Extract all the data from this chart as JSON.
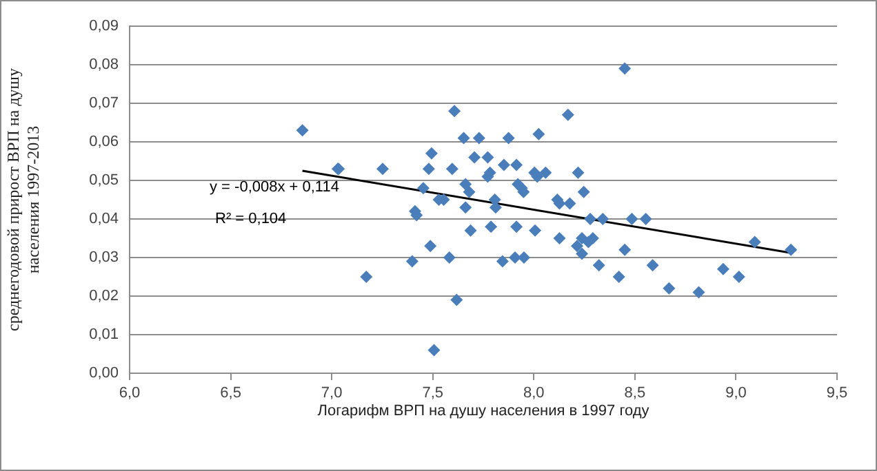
{
  "chart_data": {
    "type": "scatter",
    "xlabel": "Логарифм ВРП на душу населения в 1997 году",
    "ylabel": "среднегодовой прирост ВРП на душу\nнаселения 1997-2013",
    "xlim": [
      6.0,
      9.5
    ],
    "xticks": [
      {
        "value": 6.0,
        "label": "6,0"
      },
      {
        "value": 6.5,
        "label": "6,5"
      },
      {
        "value": 7.0,
        "label": "7,0"
      },
      {
        "value": 7.5,
        "label": "7,5"
      },
      {
        "value": 8.0,
        "label": "8,0"
      },
      {
        "value": 8.5,
        "label": "8,5"
      },
      {
        "value": 9.0,
        "label": "9,0"
      },
      {
        "value": 9.5,
        "label": "9,5"
      }
    ],
    "ylim": [
      0,
      0.09
    ],
    "yticks": [
      {
        "value": 0,
        "label": "0,00"
      },
      {
        "value": 0.01,
        "label": "0,01"
      },
      {
        "value": 0.02,
        "label": "0,02"
      },
      {
        "value": 0.03,
        "label": "0,03"
      },
      {
        "value": 0.04,
        "label": "0,04"
      },
      {
        "value": 0.05,
        "label": "0,05"
      },
      {
        "value": 0.06,
        "label": "0,06"
      },
      {
        "value": 0.07,
        "label": "0,07"
      },
      {
        "value": 0.08,
        "label": "0,08"
      },
      {
        "value": 0.09,
        "label": "0,09"
      }
    ],
    "grid": "y",
    "legend": false,
    "marker": "diamond",
    "annotations": [
      "y = -0,008x + 0,114",
      "R² = 0,104"
    ],
    "series": [
      {
        "type": "scatter",
        "color": "#4a7ebb",
        "x": [
          6.855,
          7.034,
          7.03,
          7.252,
          7.494,
          7.48,
          7.453,
          7.53,
          7.412,
          7.42,
          7.488,
          7.398,
          7.171,
          7.506,
          7.554,
          7.582,
          7.596,
          7.607,
          7.618,
          7.653,
          7.662,
          7.662,
          7.68,
          7.687,
          7.706,
          7.729,
          7.772,
          7.772,
          7.783,
          7.788,
          7.807,
          7.811,
          7.845,
          7.852,
          7.875,
          7.907,
          7.914,
          7.914,
          7.921,
          7.94,
          7.949,
          7.951,
          8.006,
          8.003,
          8.017,
          8.024,
          8.058,
          8.116,
          8.127,
          8.127,
          8.169,
          8.178,
          8.219,
          8.247,
          8.214,
          8.238,
          8.238,
          8.27,
          8.292,
          8.279,
          8.322,
          8.341,
          8.421,
          8.45,
          8.45,
          8.485,
          8.554,
          8.588,
          8.669,
          8.816,
          8.937,
          9.015,
          9.093,
          9.272
        ],
        "values": [
          0.063,
          0.053,
          0.053,
          0.053,
          0.057,
          0.053,
          0.048,
          0.045,
          0.042,
          0.041,
          0.033,
          0.029,
          0.025,
          0.006,
          0.045,
          0.03,
          0.053,
          0.068,
          0.019,
          0.061,
          0.049,
          0.043,
          0.047,
          0.037,
          0.056,
          0.061,
          0.056,
          0.051,
          0.052,
          0.038,
          0.045,
          0.043,
          0.029,
          0.054,
          0.061,
          0.03,
          0.038,
          0.054,
          0.049,
          0.048,
          0.047,
          0.03,
          0.037,
          0.052,
          0.051,
          0.062,
          0.052,
          0.045,
          0.044,
          0.035,
          0.067,
          0.044,
          0.052,
          0.047,
          0.033,
          0.035,
          0.031,
          0.034,
          0.035,
          0.04,
          0.028,
          0.04,
          0.025,
          0.079,
          0.032,
          0.04,
          0.04,
          0.028,
          0.022,
          0.021,
          0.027,
          0.025,
          0.034,
          0.032
        ]
      },
      {
        "type": "line",
        "color": "#000000",
        "marker": "none",
        "x": [
          6.855,
          9.272
        ],
        "values": [
          0.0525,
          0.0312
        ]
      }
    ]
  }
}
